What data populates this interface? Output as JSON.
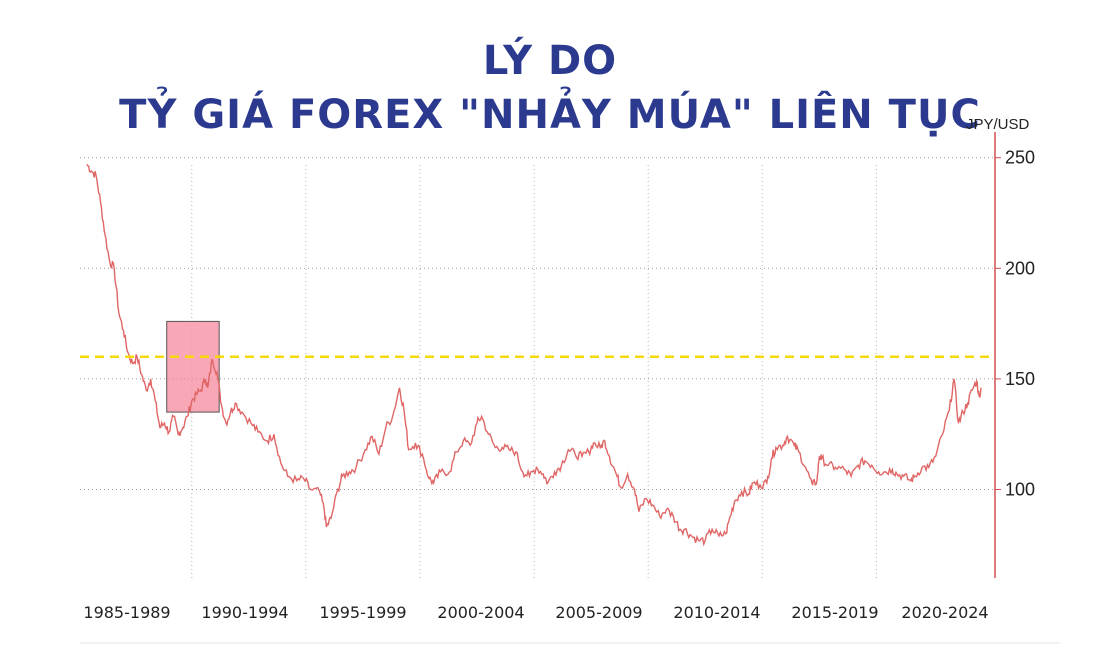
{
  "header": {
    "title_line1": "LÝ DO",
    "title_line2": "TỶ GIÁ FOREX \"NHẢY MÚA\" LIÊN TỤC"
  },
  "chart_data": {
    "type": "line",
    "ylabel": "JPY/USD",
    "ylim": [
      60,
      258
    ],
    "y_ticks": [
      100,
      150,
      200,
      250
    ],
    "x_tick_labels": [
      "1985-1989",
      "1990-1994",
      "1995-1999",
      "2000-2004",
      "2005-2009",
      "2010-2014",
      "2015-2019",
      "2020-2024"
    ],
    "y_axis_position": "right",
    "grid": true,
    "line_color": "#e06666",
    "reference_line": {
      "value": 160,
      "color": "#f5d90a",
      "style": "dashed"
    },
    "highlight_box": {
      "x_range": [
        1988.3,
        1990.6
      ],
      "y_range": [
        135,
        176
      ],
      "color": "#f48a9c"
    },
    "series": [
      {
        "values": [
          [
            1984.8,
            247
          ],
          [
            1985.0,
            244
          ],
          [
            1985.2,
            242
          ],
          [
            1985.4,
            230
          ],
          [
            1985.6,
            215
          ],
          [
            1985.8,
            203
          ],
          [
            1986.0,
            200
          ],
          [
            1986.2,
            180
          ],
          [
            1986.4,
            172
          ],
          [
            1986.6,
            162
          ],
          [
            1986.8,
            157
          ],
          [
            1987.0,
            160
          ],
          [
            1987.2,
            152
          ],
          [
            1987.4,
            145
          ],
          [
            1987.6,
            150
          ],
          [
            1987.8,
            140
          ],
          [
            1988.0,
            128
          ],
          [
            1988.2,
            130
          ],
          [
            1988.4,
            126
          ],
          [
            1988.6,
            133
          ],
          [
            1988.8,
            125
          ],
          [
            1989.0,
            128
          ],
          [
            1989.2,
            133
          ],
          [
            1989.4,
            140
          ],
          [
            1989.6,
            143
          ],
          [
            1989.8,
            145
          ],
          [
            1990.0,
            150
          ],
          [
            1990.1,
            146
          ],
          [
            1990.3,
            159
          ],
          [
            1990.5,
            153
          ],
          [
            1990.7,
            138
          ],
          [
            1990.9,
            130
          ],
          [
            1991.1,
            135
          ],
          [
            1991.3,
            139
          ],
          [
            1991.6,
            135
          ],
          [
            1992.0,
            130
          ],
          [
            1992.3,
            126
          ],
          [
            1992.7,
            122
          ],
          [
            1993.0,
            125
          ],
          [
            1993.3,
            112
          ],
          [
            1993.6,
            106
          ],
          [
            1994.0,
            104
          ],
          [
            1994.3,
            105
          ],
          [
            1994.6,
            100
          ],
          [
            1995.0,
            99
          ],
          [
            1995.2,
            91
          ],
          [
            1995.3,
            83
          ],
          [
            1995.5,
            87
          ],
          [
            1995.8,
            100
          ],
          [
            1996.0,
            106
          ],
          [
            1996.3,
            108
          ],
          [
            1996.6,
            110
          ],
          [
            1997.0,
            118
          ],
          [
            1997.3,
            124
          ],
          [
            1997.6,
            116
          ],
          [
            1997.9,
            128
          ],
          [
            1998.2,
            133
          ],
          [
            1998.5,
            146
          ],
          [
            1998.7,
            136
          ],
          [
            1998.9,
            118
          ],
          [
            1999.2,
            121
          ],
          [
            1999.5,
            116
          ],
          [
            1999.8,
            105
          ],
          [
            2000.0,
            103
          ],
          [
            2000.3,
            108
          ],
          [
            2000.7,
            108
          ],
          [
            2001.0,
            117
          ],
          [
            2001.3,
            122
          ],
          [
            2001.6,
            120
          ],
          [
            2001.9,
            130
          ],
          [
            2002.1,
            133
          ],
          [
            2002.4,
            125
          ],
          [
            2002.7,
            119
          ],
          [
            2003.0,
            119
          ],
          [
            2003.3,
            118
          ],
          [
            2003.6,
            117
          ],
          [
            2003.9,
            108
          ],
          [
            2004.2,
            106
          ],
          [
            2004.5,
            110
          ],
          [
            2004.8,
            107
          ],
          [
            2005.0,
            103
          ],
          [
            2005.3,
            108
          ],
          [
            2005.6,
            111
          ],
          [
            2005.9,
            118
          ],
          [
            2006.2,
            116
          ],
          [
            2006.5,
            115
          ],
          [
            2006.8,
            117
          ],
          [
            2007.0,
            121
          ],
          [
            2007.3,
            119
          ],
          [
            2007.5,
            122
          ],
          [
            2007.7,
            115
          ],
          [
            2008.0,
            107
          ],
          [
            2008.2,
            101
          ],
          [
            2008.5,
            107
          ],
          [
            2008.8,
            100
          ],
          [
            2009.0,
            90
          ],
          [
            2009.3,
            96
          ],
          [
            2009.6,
            93
          ],
          [
            2009.9,
            88
          ],
          [
            2010.2,
            91
          ],
          [
            2010.5,
            88
          ],
          [
            2010.8,
            82
          ],
          [
            2011.0,
            82
          ],
          [
            2011.3,
            79
          ],
          [
            2011.6,
            77
          ],
          [
            2011.9,
            77
          ],
          [
            2012.2,
            82
          ],
          [
            2012.5,
            79
          ],
          [
            2012.8,
            80
          ],
          [
            2013.0,
            88
          ],
          [
            2013.2,
            95
          ],
          [
            2013.5,
            99
          ],
          [
            2013.8,
            98
          ],
          [
            2014.0,
            103
          ],
          [
            2014.3,
            102
          ],
          [
            2014.6,
            103
          ],
          [
            2014.8,
            114
          ],
          [
            2015.0,
            119
          ],
          [
            2015.3,
            120
          ],
          [
            2015.5,
            124
          ],
          [
            2015.8,
            120
          ],
          [
            2016.0,
            117
          ],
          [
            2016.3,
            110
          ],
          [
            2016.6,
            102
          ],
          [
            2016.8,
            104
          ],
          [
            2016.9,
            115
          ],
          [
            2017.0,
            114
          ],
          [
            2017.3,
            111
          ],
          [
            2017.6,
            110
          ],
          [
            2018.0,
            109
          ],
          [
            2018.3,
            106
          ],
          [
            2018.6,
            111
          ],
          [
            2018.9,
            113
          ],
          [
            2019.2,
            111
          ],
          [
            2019.5,
            108
          ],
          [
            2019.8,
            108
          ],
          [
            2020.1,
            109
          ],
          [
            2020.3,
            107
          ],
          [
            2020.6,
            106
          ],
          [
            2020.9,
            104
          ],
          [
            2021.1,
            106
          ],
          [
            2021.4,
            110
          ],
          [
            2021.7,
            110
          ],
          [
            2022.0,
            115
          ],
          [
            2022.3,
            125
          ],
          [
            2022.6,
            136
          ],
          [
            2022.8,
            150
          ],
          [
            2023.0,
            130
          ],
          [
            2023.2,
            135
          ],
          [
            2023.4,
            139
          ],
          [
            2023.6,
            145
          ],
          [
            2023.8,
            149
          ],
          [
            2023.9,
            142
          ],
          [
            2024.0,
            146
          ]
        ]
      }
    ]
  }
}
